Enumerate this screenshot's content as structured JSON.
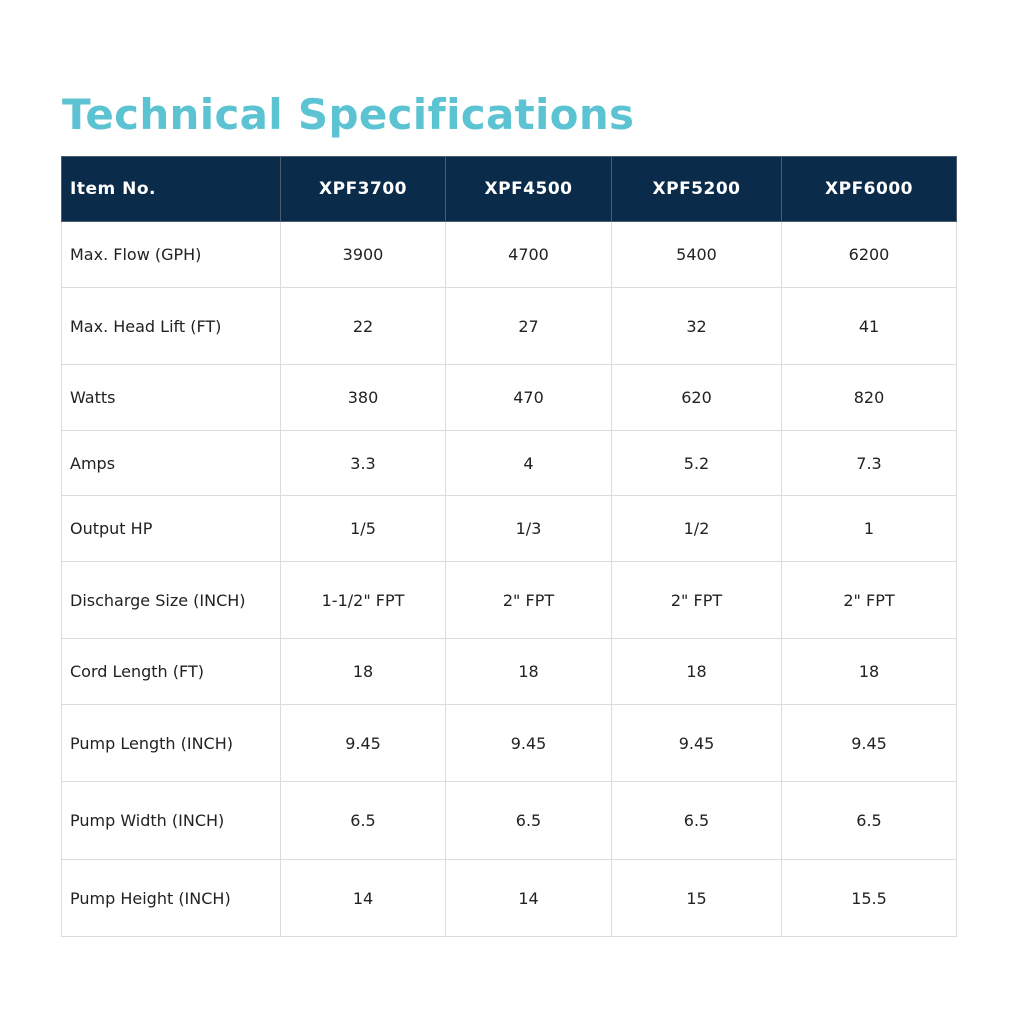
{
  "title": "Technical Specifications",
  "table": {
    "header": [
      "Item No.",
      "XPF3700",
      "XPF4500",
      "XPF5200",
      "XPF6000"
    ],
    "rows": [
      [
        "Max. Flow (GPH)",
        "3900",
        "4700",
        "5400",
        "6200"
      ],
      [
        "Max. Head Lift (FT)",
        "22",
        "27",
        "32",
        "41"
      ],
      [
        "Watts",
        "380",
        "470",
        "620",
        "820"
      ],
      [
        "Amps",
        "3.3",
        "4",
        "5.2",
        "7.3"
      ],
      [
        "Output HP",
        "1/5",
        "1/3",
        "1/2",
        "1"
      ],
      [
        "Discharge Size (INCH)",
        "1-1/2\" FPT",
        "2\" FPT",
        "2\" FPT",
        "2\" FPT"
      ],
      [
        "Cord Length (FT)",
        "18",
        "18",
        "18",
        "18"
      ],
      [
        "Pump Length (INCH)",
        "9.45",
        "9.45",
        "9.45",
        "9.45"
      ],
      [
        "Pump Width (INCH)",
        "6.5",
        "6.5",
        "6.5",
        "6.5"
      ],
      [
        "Pump Height (INCH)",
        "14",
        "14",
        "15",
        "15.5"
      ]
    ]
  }
}
